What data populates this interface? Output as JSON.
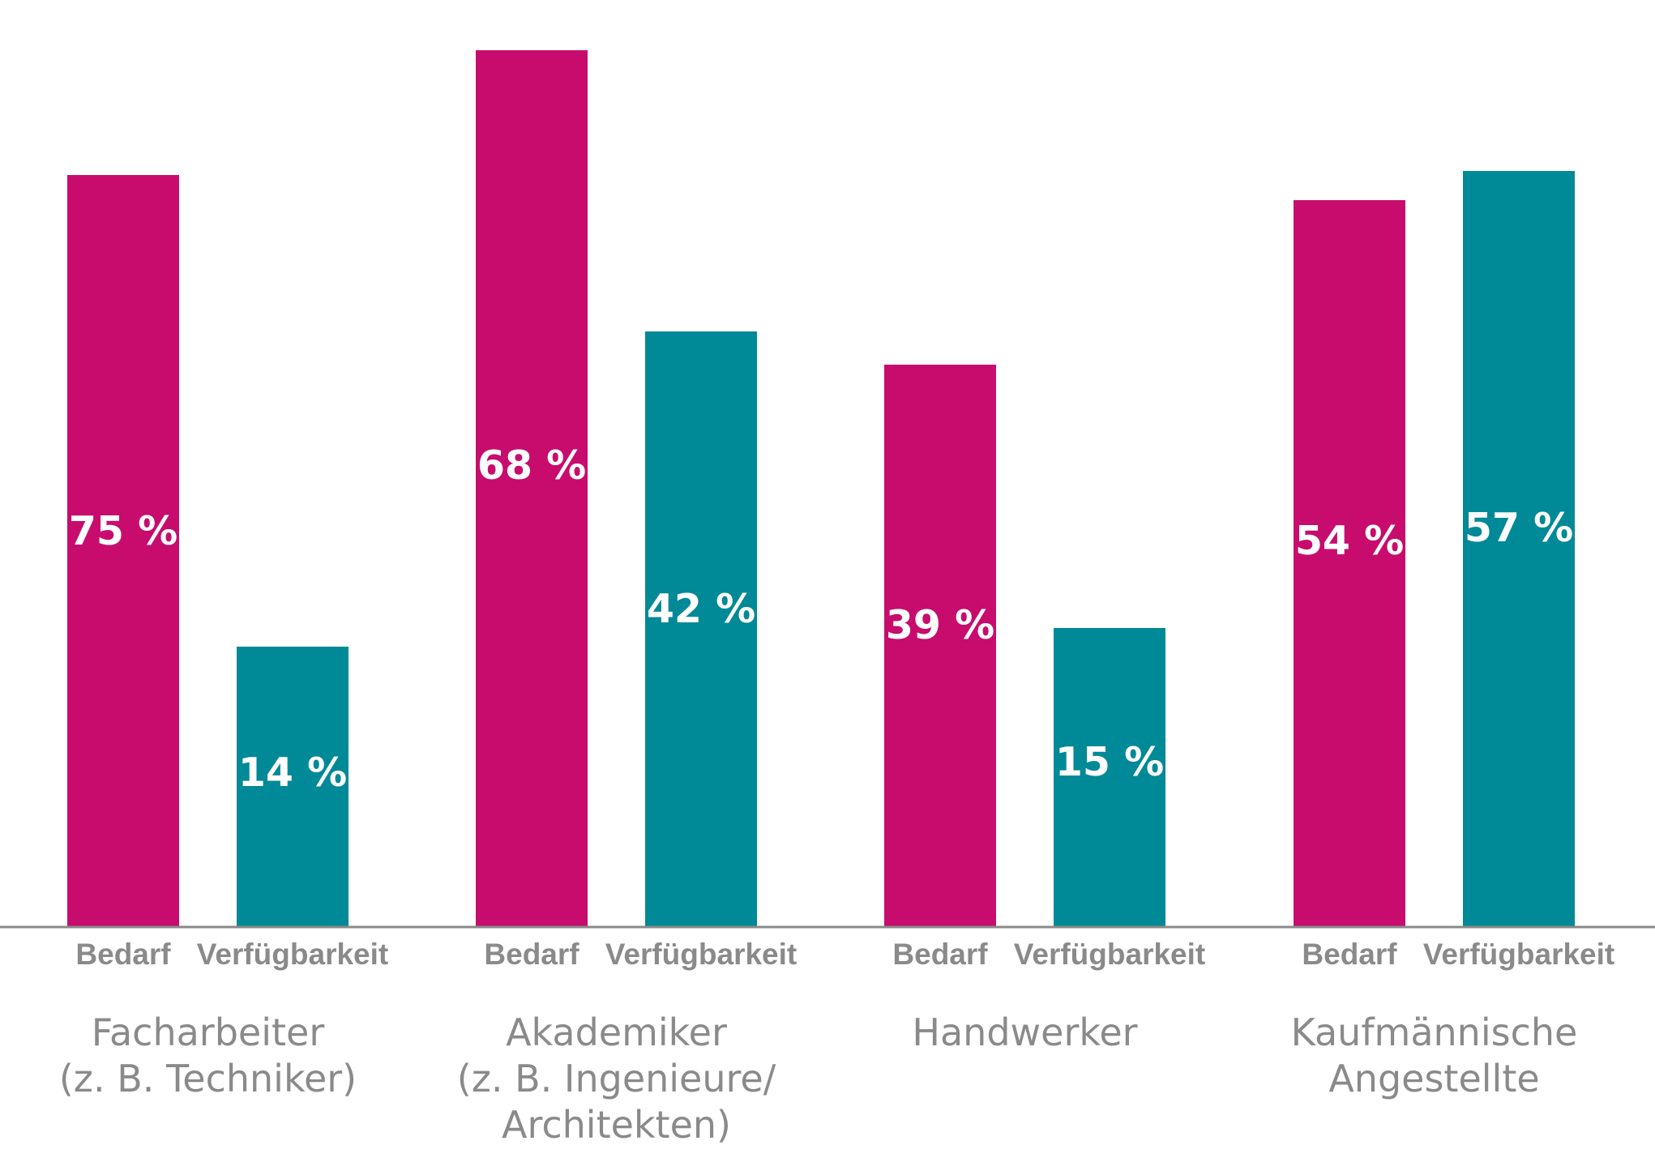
{
  "chart_data": {
    "type": "bar",
    "categories": [
      [
        "Facharbeiter",
        "(z. B. Techniker)"
      ],
      [
        "Akademiker",
        "(z. B. Ingenieure/",
        "Architekten)"
      ],
      [
        "Handwerker"
      ],
      [
        "Kaufmännische",
        "Angestellte"
      ]
    ],
    "series": [
      {
        "name": "Bedarf",
        "values": [
          75,
          68,
          39,
          54
        ],
        "labels": [
          "75 %",
          "68 %",
          "39 %",
          "54 %"
        ],
        "color": "#c70c6e"
      },
      {
        "name": "Verfügbarkeit",
        "values": [
          14,
          42,
          15,
          57
        ],
        "labels": [
          "14 %",
          "42 %",
          "15 %",
          "57 %"
        ],
        "color": "#008996"
      }
    ],
    "axis_color": "#8a8a8a",
    "text_color": "#8a8a8a",
    "bar_label_color": "#ffffff",
    "grid": false,
    "legend": "none"
  }
}
